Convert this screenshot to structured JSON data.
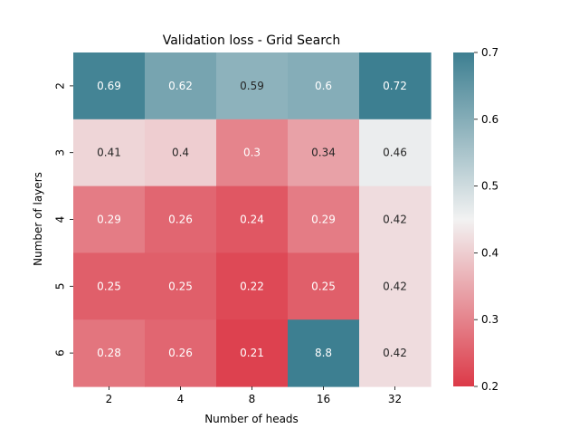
{
  "chart_data": {
    "type": "heatmap",
    "title": "Validation loss - Grid Search",
    "xlabel": "Number of heads",
    "ylabel": "Number of layers",
    "x_categories": [
      "2",
      "4",
      "8",
      "16",
      "32"
    ],
    "y_categories": [
      "2",
      "3",
      "4",
      "5",
      "6"
    ],
    "values": [
      [
        0.69,
        0.62,
        0.59,
        0.6,
        0.72
      ],
      [
        0.41,
        0.4,
        0.3,
        0.34,
        0.46
      ],
      [
        0.29,
        0.26,
        0.24,
        0.29,
        0.42
      ],
      [
        0.25,
        0.25,
        0.22,
        0.25,
        0.42
      ],
      [
        0.28,
        0.26,
        0.21,
        8.8,
        0.42
      ]
    ],
    "labels": [
      [
        "0.69",
        "0.62",
        "0.59",
        "0.6",
        "0.72"
      ],
      [
        "0.41",
        "0.4",
        "0.3",
        "0.34",
        "0.46"
      ],
      [
        "0.29",
        "0.26",
        "0.24",
        "0.29",
        "0.42"
      ],
      [
        "0.25",
        "0.25",
        "0.22",
        "0.25",
        "0.42"
      ],
      [
        "0.28",
        "0.26",
        "0.21",
        "8.8",
        "0.42"
      ]
    ],
    "colorbar": {
      "vmin": 0.2,
      "vmax": 0.7,
      "ticks": [
        "0.2",
        "0.3",
        "0.4",
        "0.5",
        "0.6",
        "0.7"
      ],
      "colors": {
        "low": "#dc3a48",
        "mid": "#f2f2f2",
        "high": "#3d7f91"
      }
    },
    "legend": "right"
  }
}
